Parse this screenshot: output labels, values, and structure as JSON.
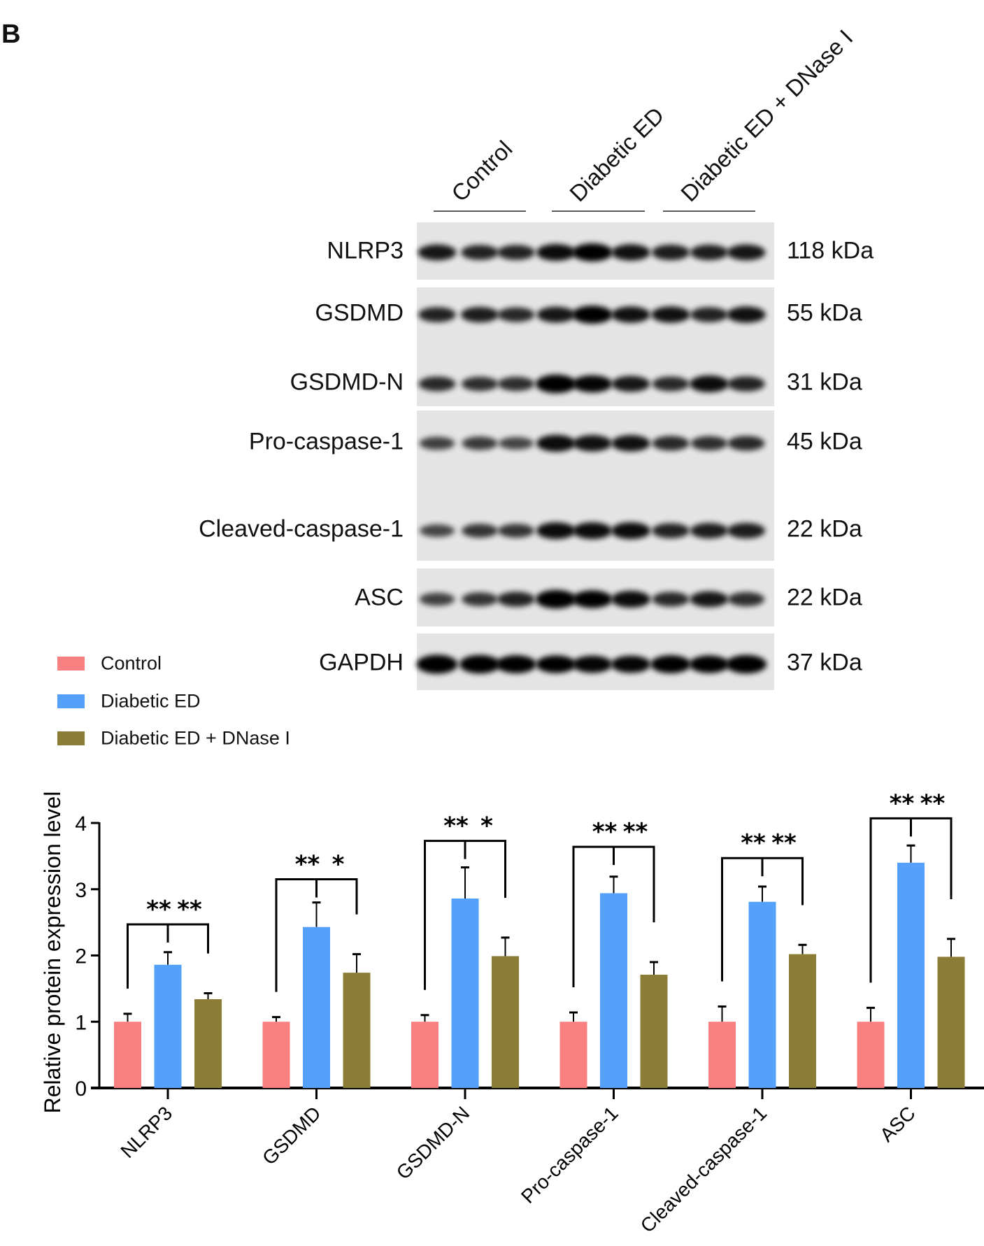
{
  "panel_label": "B",
  "blot": {
    "groups": [
      "Control",
      "Diabetic ED",
      "Diabetic ED + DNase I"
    ],
    "proteins": [
      {
        "name": "NLRP3",
        "size": "118 kDa"
      },
      {
        "name": "GSDMD",
        "size": "55 kDa"
      },
      {
        "name": "GSDMD-N",
        "size": "31 kDa"
      },
      {
        "name": "Pro-caspase-1",
        "size": "45 kDa"
      },
      {
        "name": "Cleaved-caspase-1",
        "size": "22 kDa"
      },
      {
        "name": "ASC",
        "size": "22 kDa"
      },
      {
        "name": "GAPDH",
        "size": "37 kDa"
      }
    ]
  },
  "chart_data": {
    "type": "bar",
    "title": "",
    "xlabel": "",
    "ylabel": "Relative protein expression level",
    "ylim": [
      0,
      4
    ],
    "yticks": [
      0,
      1,
      2,
      3,
      4
    ],
    "grid": false,
    "legend_placement": "top-left",
    "categories": [
      "NLRP3",
      "GSDMD",
      "GSDMD-N",
      "Pro-caspase-1",
      "Cleaved-caspase-1",
      "ASC"
    ],
    "series": [
      {
        "name": "Control",
        "color": "#f88080",
        "values": [
          1.0,
          1.0,
          1.0,
          1.0,
          1.0,
          1.0
        ],
        "errors": [
          0.12,
          0.07,
          0.1,
          0.14,
          0.23,
          0.21
        ]
      },
      {
        "name": "Diabetic ED",
        "color": "#55a0fa",
        "values": [
          1.86,
          2.43,
          2.86,
          2.94,
          2.81,
          3.4
        ],
        "errors": [
          0.19,
          0.37,
          0.47,
          0.25,
          0.23,
          0.26
        ]
      },
      {
        "name": "Diabetic ED + DNase I",
        "color": "#8b7d35",
        "values": [
          1.34,
          1.74,
          1.99,
          1.71,
          2.02,
          1.98
        ],
        "errors": [
          0.09,
          0.28,
          0.28,
          0.19,
          0.14,
          0.27
        ]
      }
    ],
    "significance": [
      {
        "left": "**",
        "right": "**"
      },
      {
        "left": "**",
        "right": "*"
      },
      {
        "left": "**",
        "right": "*"
      },
      {
        "left": "**",
        "right": "**"
      },
      {
        "left": "**",
        "right": "**"
      },
      {
        "left": "**",
        "right": "**"
      }
    ]
  }
}
